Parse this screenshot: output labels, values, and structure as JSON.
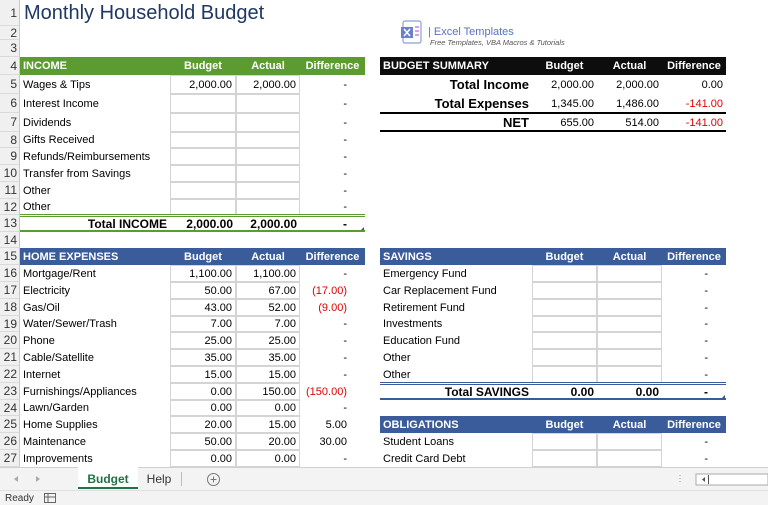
{
  "title": "Monthly Household Budget",
  "logo": {
    "name": "| Excel Templates",
    "tagline": "Free Templates, VBA Macros & Tutorials"
  },
  "row_numbers": [
    1,
    2,
    3,
    4,
    5,
    6,
    7,
    8,
    9,
    10,
    11,
    12,
    13,
    14,
    15,
    16,
    17,
    18,
    19,
    20,
    21,
    22,
    23,
    24,
    25,
    26,
    27
  ],
  "income": {
    "header": [
      "INCOME",
      "Budget",
      "Actual",
      "Difference"
    ],
    "rows": [
      [
        "Wages & Tips",
        "2,000.00",
        "2,000.00",
        "-"
      ],
      [
        "Interest Income",
        null,
        null,
        "-"
      ],
      [
        "Dividends",
        null,
        null,
        "-"
      ],
      [
        "Gifts Received",
        null,
        null,
        "-"
      ],
      [
        "Refunds/Reimbursements",
        null,
        null,
        "-"
      ],
      [
        "Transfer from Savings",
        null,
        null,
        "-"
      ],
      [
        "Other",
        null,
        null,
        "-"
      ],
      [
        "Other",
        null,
        null,
        "-"
      ]
    ],
    "total": [
      "Total INCOME",
      "2,000.00",
      "2,000.00",
      "-"
    ]
  },
  "summary": {
    "header": [
      "BUDGET SUMMARY",
      "Budget",
      "Actual",
      "Difference"
    ],
    "rows": [
      [
        "Total Income",
        "2,000.00",
        "2,000.00",
        "0.00"
      ],
      [
        "Total Expenses",
        "1,345.00",
        "1,486.00",
        "-141.00"
      ],
      [
        "NET",
        "655.00",
        "514.00",
        "-141.00"
      ]
    ]
  },
  "home_expenses": {
    "header": [
      "HOME EXPENSES",
      "Budget",
      "Actual",
      "Difference"
    ],
    "rows": [
      [
        "Mortgage/Rent",
        "1,100.00",
        "1,100.00",
        "-"
      ],
      [
        "Electricity",
        "50.00",
        "67.00",
        "(17.00)"
      ],
      [
        "Gas/Oil",
        "43.00",
        "52.00",
        "(9.00)"
      ],
      [
        "Water/Sewer/Trash",
        "7.00",
        "7.00",
        "-"
      ],
      [
        "Phone",
        "25.00",
        "25.00",
        "-"
      ],
      [
        "Cable/Satellite",
        "35.00",
        "35.00",
        "-"
      ],
      [
        "Internet",
        "15.00",
        "15.00",
        "-"
      ],
      [
        "Furnishings/Appliances",
        "0.00",
        "150.00",
        "(150.00)"
      ],
      [
        "Lawn/Garden",
        "0.00",
        "0.00",
        "-"
      ],
      [
        "Home Supplies",
        "20.00",
        "15.00",
        "5.00"
      ],
      [
        "Maintenance",
        "50.00",
        "20.00",
        "30.00"
      ],
      [
        "Improvements",
        "0.00",
        "0.00",
        "-"
      ]
    ]
  },
  "savings": {
    "header": [
      "SAVINGS",
      "Budget",
      "Actual",
      "Difference"
    ],
    "rows": [
      [
        "Emergency Fund",
        null,
        null,
        "-"
      ],
      [
        "Car Replacement Fund",
        null,
        null,
        "-"
      ],
      [
        "Retirement Fund",
        null,
        null,
        "-"
      ],
      [
        "Investments",
        null,
        null,
        "-"
      ],
      [
        "Education Fund",
        null,
        null,
        "-"
      ],
      [
        "Other",
        null,
        null,
        "-"
      ],
      [
        "Other",
        null,
        null,
        "-"
      ]
    ],
    "total": [
      "Total SAVINGS",
      "0.00",
      "0.00",
      "-"
    ]
  },
  "obligations": {
    "header": [
      "OBLIGATIONS",
      "Budget",
      "Actual",
      "Difference"
    ],
    "rows": [
      [
        "Student Loans",
        null,
        null,
        "-"
      ],
      [
        "Credit Card Debt",
        null,
        null,
        "-"
      ]
    ]
  },
  "tabs": [
    "Budget",
    "Help"
  ],
  "status": "Ready"
}
